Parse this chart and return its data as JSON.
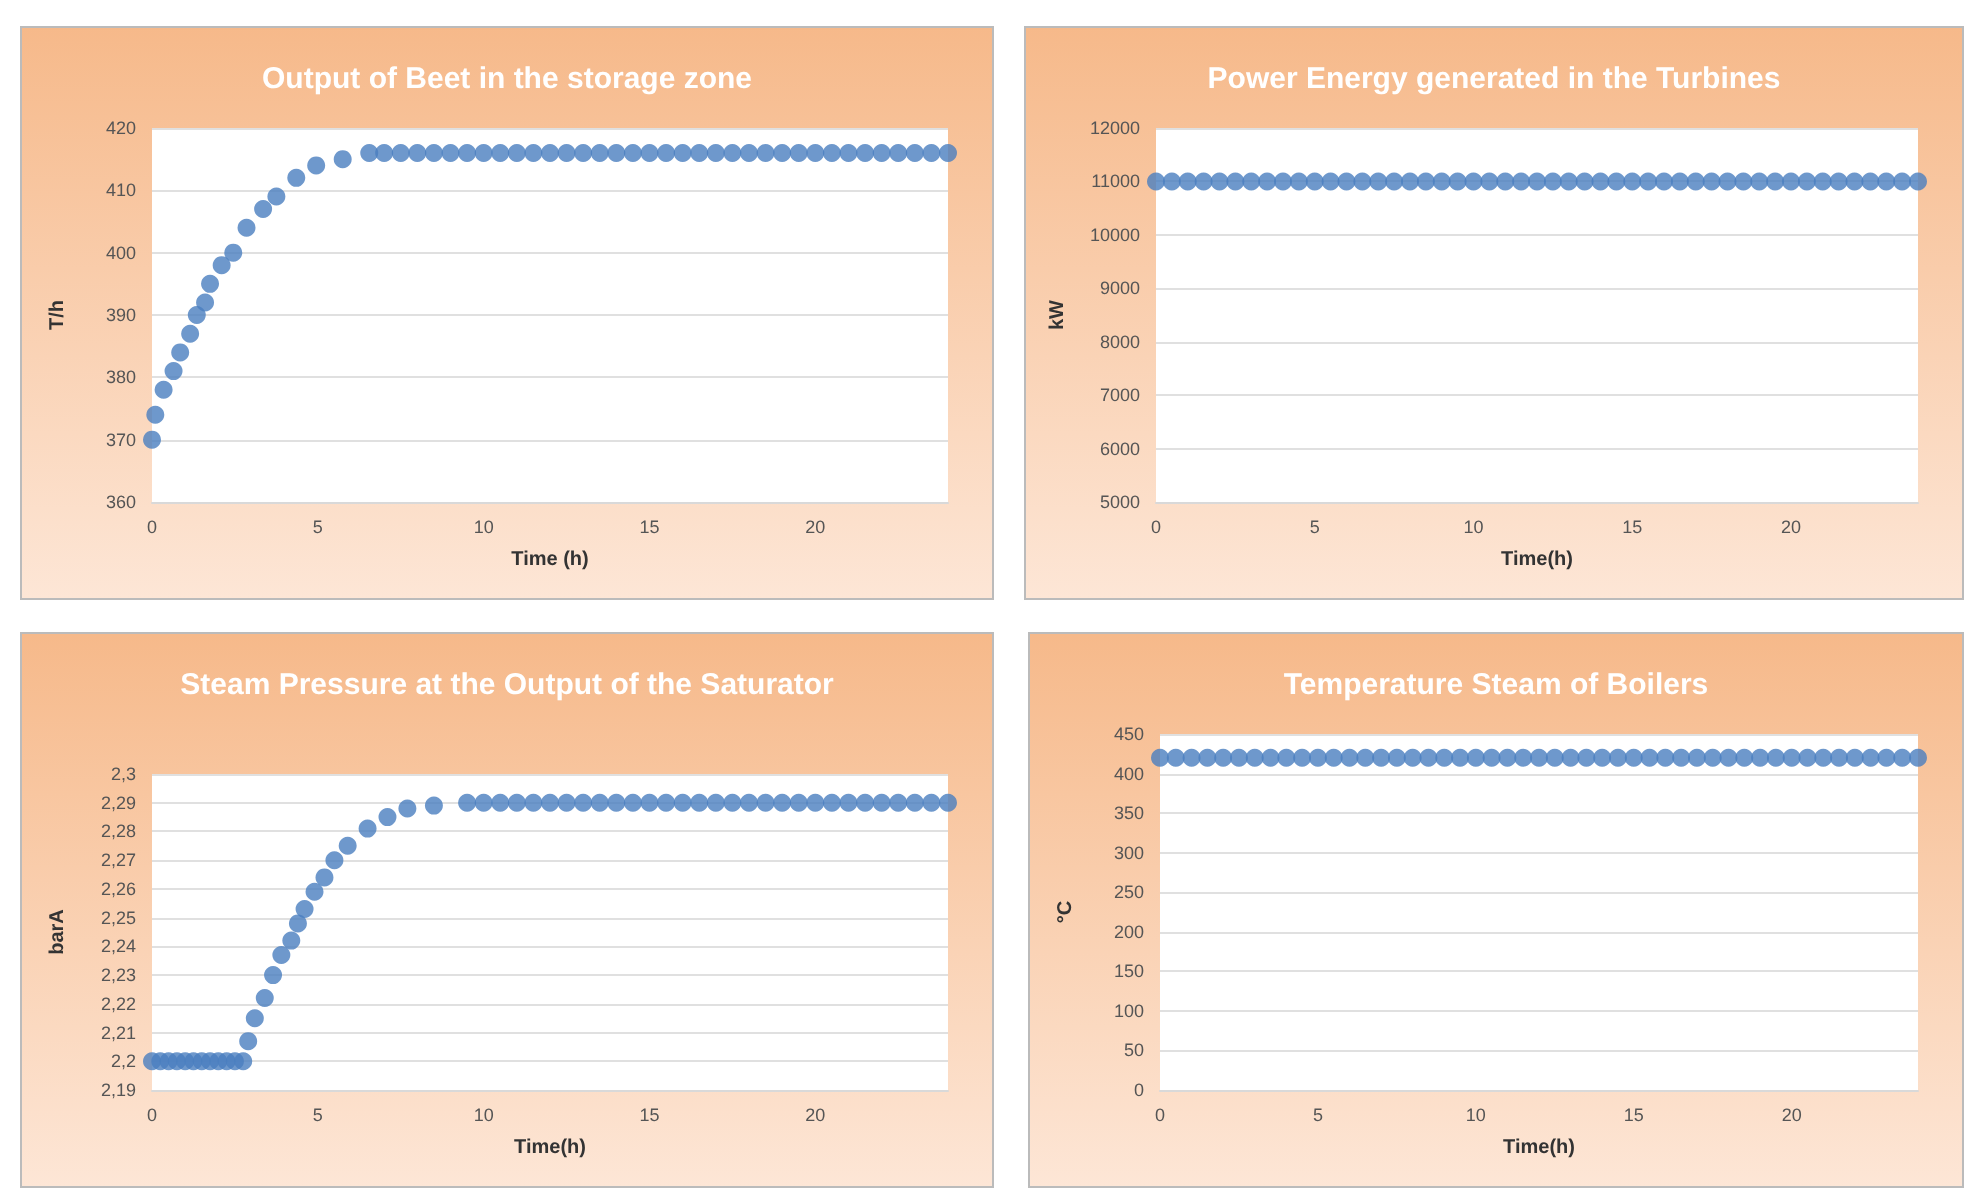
{
  "chart_data": [
    {
      "type": "scatter",
      "title": "Output of Beet in the storage zone",
      "xlabel": "Time (h)",
      "ylabel": "T/h",
      "marker": "circle",
      "grid": "y",
      "xlim": [
        0,
        24
      ],
      "xticks": [
        0,
        5,
        10,
        15,
        20
      ],
      "ylim": [
        360,
        420
      ],
      "yticks": [
        360,
        370,
        380,
        390,
        400,
        410,
        420
      ],
      "series": [
        {
          "color": "#4a7ebf",
          "x": [
            0,
            0.1,
            0.35,
            0.65,
            0.85,
            1.15,
            1.35,
            1.6,
            1.75,
            2.1,
            2.45,
            2.85,
            3.35,
            3.75,
            4.35,
            4.95,
            5.75,
            6.55,
            7,
            7.5,
            8,
            8.5,
            9,
            9.5,
            10,
            10.5,
            11,
            11.5,
            12,
            12.5,
            13,
            13.5,
            14,
            14.5,
            15,
            15.5,
            16,
            16.5,
            17,
            17.5,
            18,
            18.5,
            19,
            19.5,
            20,
            20.5,
            21,
            21.5,
            22,
            22.5,
            23,
            23.5,
            24
          ],
          "values": [
            370,
            374,
            378,
            381,
            384,
            387,
            390,
            392,
            395,
            398,
            400,
            404,
            407,
            409,
            412,
            414,
            415,
            416,
            416,
            416,
            416,
            416,
            416,
            416,
            416,
            416,
            416,
            416,
            416,
            416,
            416,
            416,
            416,
            416,
            416,
            416,
            416,
            416,
            416,
            416,
            416,
            416,
            416,
            416,
            416,
            416,
            416,
            416,
            416,
            416,
            416,
            416,
            416
          ]
        }
      ]
    },
    {
      "type": "scatter",
      "title": "Power Energy generated in the Turbines",
      "xlabel": "Time(h)",
      "ylabel": "kW",
      "marker": "circle",
      "grid": "y",
      "xlim": [
        0,
        24
      ],
      "xticks": [
        0,
        5,
        10,
        15,
        20
      ],
      "ylim": [
        5000,
        12000
      ],
      "yticks": [
        5000,
        6000,
        7000,
        8000,
        9000,
        10000,
        11000,
        12000
      ],
      "series": [
        {
          "color": "#4a7ebf",
          "x": [
            0,
            0.5,
            1,
            1.5,
            2,
            2.5,
            3,
            3.5,
            4,
            4.5,
            5,
            5.5,
            6,
            6.5,
            7,
            7.5,
            8,
            8.5,
            9,
            9.5,
            10,
            10.5,
            11,
            11.5,
            12,
            12.5,
            13,
            13.5,
            14,
            14.5,
            15,
            15.5,
            16,
            16.5,
            17,
            17.5,
            18,
            18.5,
            19,
            19.5,
            20,
            20.5,
            21,
            21.5,
            22,
            22.5,
            23,
            23.5,
            24
          ],
          "values": [
            11000,
            11000,
            11000,
            11000,
            11000,
            11000,
            11000,
            11000,
            11000,
            11000,
            11000,
            11000,
            11000,
            11000,
            11000,
            11000,
            11000,
            11000,
            11000,
            11000,
            11000,
            11000,
            11000,
            11000,
            11000,
            11000,
            11000,
            11000,
            11000,
            11000,
            11000,
            11000,
            11000,
            11000,
            11000,
            11000,
            11000,
            11000,
            11000,
            11000,
            11000,
            11000,
            11000,
            11000,
            11000,
            11000,
            11000,
            11000,
            11000
          ]
        }
      ]
    },
    {
      "type": "scatter",
      "title": "Steam Pressure at the Output of the Saturator",
      "xlabel": "Time(h)",
      "ylabel": "barA",
      "marker": "circle",
      "grid": "y",
      "xlim": [
        0,
        24
      ],
      "xticks": [
        0,
        5,
        10,
        15,
        20
      ],
      "ylim": [
        2.19,
        2.3
      ],
      "yticks": [
        {
          "value": 2.19,
          "label": "2,19"
        },
        {
          "value": 2.2,
          "label": "2,2"
        },
        {
          "value": 2.21,
          "label": "2,21"
        },
        {
          "value": 2.22,
          "label": "2,22"
        },
        {
          "value": 2.23,
          "label": "2,23"
        },
        {
          "value": 2.24,
          "label": "2,24"
        },
        {
          "value": 2.25,
          "label": "2,25"
        },
        {
          "value": 2.26,
          "label": "2,26"
        },
        {
          "value": 2.27,
          "label": "2,27"
        },
        {
          "value": 2.28,
          "label": "2,28"
        },
        {
          "value": 2.29,
          "label": "2,29"
        },
        {
          "value": 2.3,
          "label": "2,3"
        }
      ],
      "series": [
        {
          "color": "#4a7ebf",
          "x": [
            0,
            0.25,
            0.5,
            0.75,
            1,
            1.25,
            1.5,
            1.75,
            2,
            2.25,
            2.5,
            2.75,
            2.9,
            3.1,
            3.4,
            3.65,
            3.9,
            4.2,
            4.4,
            4.6,
            4.9,
            5.2,
            5.5,
            5.9,
            6.5,
            7.1,
            7.7,
            8.5,
            9.5,
            10,
            10.5,
            11,
            11.5,
            12,
            12.5,
            13,
            13.5,
            14,
            14.5,
            15,
            15.5,
            16,
            16.5,
            17,
            17.5,
            18,
            18.5,
            19,
            19.5,
            20,
            20.5,
            21,
            21.5,
            22,
            22.5,
            23,
            23.5,
            24
          ],
          "values": [
            2.2,
            2.2,
            2.2,
            2.2,
            2.2,
            2.2,
            2.2,
            2.2,
            2.2,
            2.2,
            2.2,
            2.2,
            2.207,
            2.215,
            2.222,
            2.23,
            2.237,
            2.242,
            2.248,
            2.253,
            2.259,
            2.264,
            2.27,
            2.275,
            2.281,
            2.285,
            2.288,
            2.289,
            2.29,
            2.29,
            2.29,
            2.29,
            2.29,
            2.29,
            2.29,
            2.29,
            2.29,
            2.29,
            2.29,
            2.29,
            2.29,
            2.29,
            2.29,
            2.29,
            2.29,
            2.29,
            2.29,
            2.29,
            2.29,
            2.29,
            2.29,
            2.29,
            2.29,
            2.29,
            2.29,
            2.29,
            2.29,
            2.29
          ]
        }
      ]
    },
    {
      "type": "scatter",
      "title": "Temperature Steam of Boilers",
      "xlabel": "Time(h)",
      "ylabel": "°C",
      "marker": "circle",
      "grid": "y",
      "xlim": [
        0,
        24
      ],
      "xticks": [
        0,
        5,
        10,
        15,
        20
      ],
      "ylim": [
        0,
        450
      ],
      "yticks": [
        0,
        50,
        100,
        150,
        200,
        250,
        300,
        350,
        400,
        450
      ],
      "series": [
        {
          "color": "#4a7ebf",
          "x": [
            0,
            0.5,
            1,
            1.5,
            2,
            2.5,
            3,
            3.5,
            4,
            4.5,
            5,
            5.5,
            6,
            6.5,
            7,
            7.5,
            8,
            8.5,
            9,
            9.5,
            10,
            10.5,
            11,
            11.5,
            12,
            12.5,
            13,
            13.5,
            14,
            14.5,
            15,
            15.5,
            16,
            16.5,
            17,
            17.5,
            18,
            18.5,
            19,
            19.5,
            20,
            20.5,
            21,
            21.5,
            22,
            22.5,
            23,
            23.5,
            24
          ],
          "values": [
            420,
            420,
            420,
            420,
            420,
            420,
            420,
            420,
            420,
            420,
            420,
            420,
            420,
            420,
            420,
            420,
            420,
            420,
            420,
            420,
            420,
            420,
            420,
            420,
            420,
            420,
            420,
            420,
            420,
            420,
            420,
            420,
            420,
            420,
            420,
            420,
            420,
            420,
            420,
            420,
            420,
            420,
            420,
            420,
            420,
            420,
            420,
            420,
            420
          ]
        }
      ]
    }
  ]
}
